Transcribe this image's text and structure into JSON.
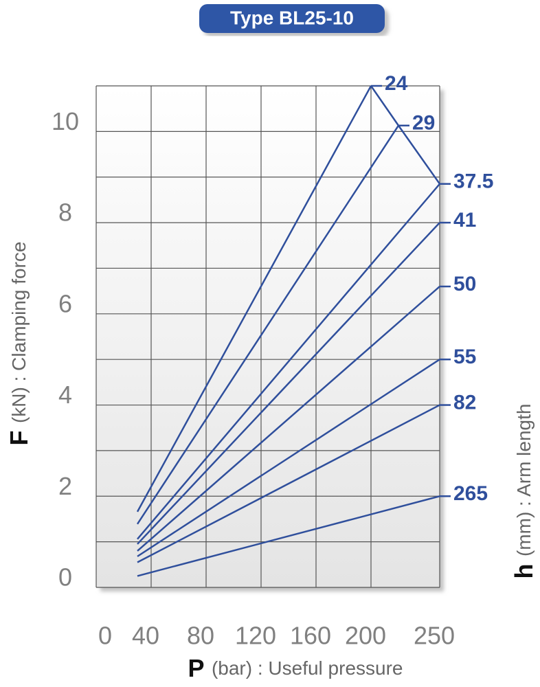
{
  "chart_data": {
    "type": "line",
    "title": "Type BL25-10",
    "x_label_symbol": "P",
    "x_label": "(bar) : Useful pressure",
    "y_label_symbol": "F",
    "y_label": "(kN) : Clamping force",
    "legend_symbol": "h",
    "legend_title": "(mm) : Arm length",
    "xlim": [
      0,
      250
    ],
    "xticks": [
      0,
      40,
      80,
      120,
      160,
      200,
      250
    ],
    "ylim": [
      0,
      11
    ],
    "yticks": [
      0,
      2,
      4,
      6,
      8,
      10
    ],
    "y_minor_ticks": [
      1,
      3,
      5,
      7,
      9,
      11
    ],
    "grid": true,
    "color": "#2f4f9c",
    "series": [
      {
        "name": "24",
        "x": [
          30,
          200
        ],
        "values": [
          1.66,
          11.0
        ]
      },
      {
        "name": "29",
        "x": [
          30,
          220
        ],
        "values": [
          1.39,
          10.13
        ]
      },
      {
        "name": "37.5",
        "x": [
          30,
          250
        ],
        "values": [
          1.06,
          8.85
        ]
      },
      {
        "name": "41",
        "x": [
          30,
          250
        ],
        "values": [
          0.95,
          8.0
        ]
      },
      {
        "name": "50",
        "x": [
          30,
          250
        ],
        "values": [
          0.8,
          6.6
        ]
      },
      {
        "name": "55",
        "x": [
          30,
          250
        ],
        "values": [
          0.68,
          5.0
        ]
      },
      {
        "name": "82",
        "x": [
          30,
          250
        ],
        "values": [
          0.55,
          4.0
        ]
      },
      {
        "name": "265",
        "x": [
          30,
          250
        ],
        "values": [
          0.25,
          2.0
        ]
      }
    ]
  }
}
